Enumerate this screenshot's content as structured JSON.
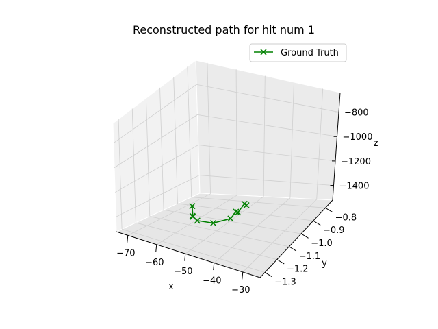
{
  "chart_data": {
    "type": "line3d",
    "title": "Reconstructed path for hit num 1",
    "xlabel": "x",
    "ylabel": "y",
    "zlabel": "z",
    "x_ticks": [
      "−70",
      "−60",
      "−50",
      "−40",
      "−30"
    ],
    "y_ticks": [
      "−1.3",
      "−1.2",
      "−1.1",
      "−1.0",
      "−0.9",
      "−0.8"
    ],
    "z_ticks": [
      "−1400",
      "−1200",
      "−1000",
      "−800"
    ],
    "grid": true,
    "legend_position": "top-right",
    "series": [
      {
        "name": "Ground Truth",
        "color": "#008000",
        "marker": "x",
        "points": [
          {
            "x": -52,
            "y": -0.86,
            "z": -1230
          },
          {
            "x": -55,
            "y": -0.93,
            "z": -1380
          },
          {
            "x": -56,
            "y": -0.95,
            "z": -1395
          },
          {
            "x": -55,
            "y": -0.96,
            "z": -1430
          },
          {
            "x": -51,
            "y": -0.98,
            "z": -1440
          },
          {
            "x": -47,
            "y": -1.01,
            "z": -1410
          },
          {
            "x": -44,
            "y": -0.98,
            "z": -1320
          },
          {
            "x": -43,
            "y": -0.97,
            "z": -1310
          },
          {
            "x": -38,
            "y": -0.9,
            "z": -1155
          },
          {
            "x": -37,
            "y": -0.89,
            "z": -1150
          }
        ]
      }
    ]
  }
}
